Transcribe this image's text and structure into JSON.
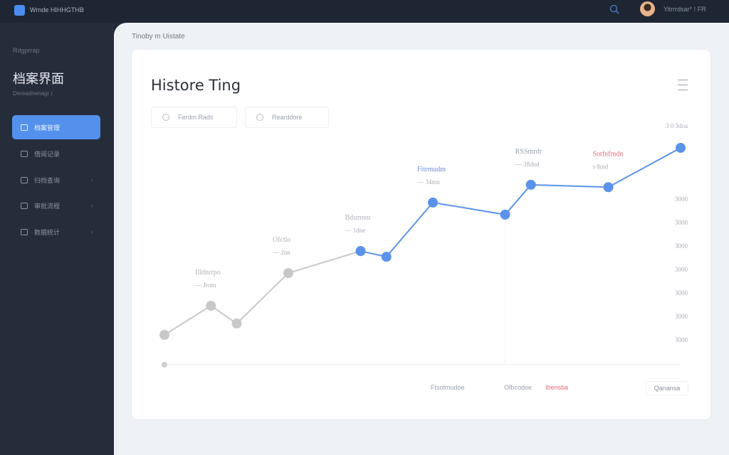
{
  "topbar": {
    "app_name": "Wrnde HIHHGTHB",
    "user_label": "Yitrrrdsar* ! FR"
  },
  "sidebar": {
    "small_label": "Rdgprrap",
    "title": "档案界面",
    "subtitle": "Dereadnenagr r",
    "items": [
      {
        "label": "档案管理",
        "active": true
      },
      {
        "label": "借阅记录"
      },
      {
        "label": "归档查询"
      },
      {
        "label": "审批流程"
      },
      {
        "label": "数据统计"
      }
    ]
  },
  "main": {
    "breadcrumb": "Tinoby m Uistate",
    "card_title": "Histore Ting",
    "filters": [
      "Ferdm Rads",
      "Rearddore"
    ],
    "footer": {
      "items": [
        "Ftsotmudoe",
        "Ofbcodoe",
        "Ibensba"
      ],
      "button": "Qanansa"
    }
  },
  "chart_data": {
    "type": "line",
    "title": "Histore Ting",
    "ylim": [
      0,
      100
    ],
    "y_ticks": [
      "3 0 3doa",
      "3000",
      "3000",
      "3000",
      "3000",
      "3000",
      "3000",
      "3000"
    ],
    "series": [
      {
        "color": "#c8c8c8",
        "x": [
          0,
          9,
          14,
          24,
          38
        ],
        "y": [
          12.6,
          24.9,
          17.4,
          38.7,
          48
        ]
      },
      {
        "color": "#5b93ea",
        "x": [
          38,
          43,
          52,
          66,
          71,
          86,
          100
        ],
        "y": [
          48,
          45.6,
          68.5,
          63.4,
          76,
          75,
          91.6
        ]
      }
    ],
    "annotations": [
      {
        "title": "Illdnrrpo",
        "value": "— Jrom",
        "x": 9,
        "color": "#b0b4bb"
      },
      {
        "title": "Ofctlo",
        "value": "— 2nn",
        "x": 24,
        "color": "#b0b4bb"
      },
      {
        "title": "Bdsmnnt",
        "value": "— 1dne",
        "x": 38,
        "color": "#b0b4bb"
      },
      {
        "title": "Fitrmudm",
        "value": "— 34mn",
        "x": 52,
        "color": "#6b8fcf"
      },
      {
        "title": "RSSmrdr",
        "value": "— 38dnd",
        "x": 71,
        "color": "#9aa1ac"
      },
      {
        "title": "Sotfnfmdn",
        "value": "s 8ind",
        "x": 86,
        "color": "#e06a78"
      }
    ]
  }
}
